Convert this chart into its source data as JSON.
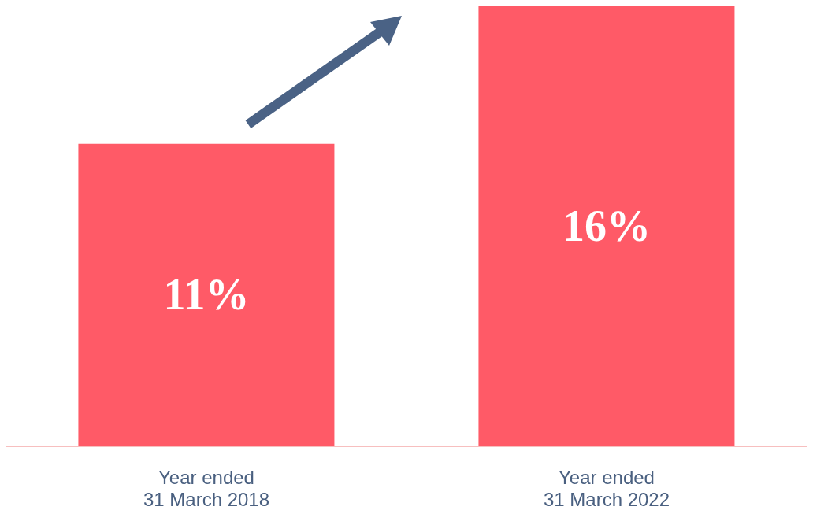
{
  "chart_data": {
    "type": "bar",
    "categories": [
      "Year ended 31 March 2018",
      "Year ended 31 March 2022"
    ],
    "values": [
      11,
      16
    ],
    "color": "#ff5a67",
    "data_labels": true,
    "value_labels": [
      "11%",
      "16%"
    ],
    "tick_labels": "x"
  }
}
